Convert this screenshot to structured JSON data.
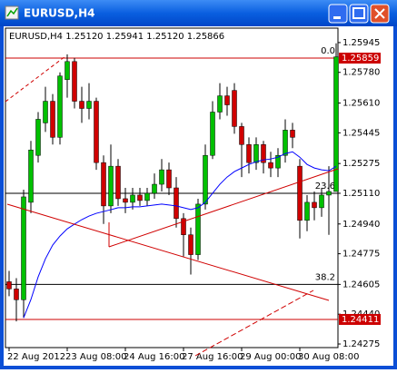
{
  "window_title": "EURUSD,H4",
  "chart_data": {
    "type": "candlestick",
    "header": "EURUSD,H4  1.25120 1.25941 1.25120 1.25866",
    "categories": [
      "22 Aug 2012",
      null,
      null,
      null,
      null,
      null,
      null,
      null,
      "23 Aug 08:00",
      null,
      null,
      null,
      null,
      null,
      null,
      null,
      "24 Aug 16:00",
      null,
      null,
      null,
      null,
      null,
      null,
      null,
      "27 Aug 16:00",
      null,
      null,
      null,
      null,
      null,
      null,
      null,
      "29 Aug 00:00",
      null,
      null,
      null,
      null,
      null,
      null,
      null,
      "30 Aug 08:00",
      null,
      null,
      null,
      null,
      null
    ],
    "open": [
      1.2462,
      1.2458,
      1.2452,
      1.2506,
      1.2532,
      1.255,
      1.2562,
      1.2542,
      1.2574,
      1.2584,
      1.2562,
      1.2558,
      1.2562,
      1.2528,
      1.2504,
      1.2526,
      1.2508,
      1.2506,
      1.251,
      1.2507,
      1.2511,
      1.2516,
      1.2524,
      1.2514,
      1.2497,
      1.2488,
      1.2477,
      1.2505,
      1.2532,
      1.2556,
      1.2565,
      1.2568,
      1.2548,
      1.2538,
      1.2528,
      1.2538,
      1.2528,
      1.2525,
      1.2532,
      1.2546,
      1.2526,
      1.2496,
      1.2506,
      1.2503,
      1.251,
      1.2512
    ],
    "high": [
      1.2468,
      1.2464,
      1.2513,
      1.254,
      1.2556,
      1.257,
      1.2566,
      1.2578,
      1.2588,
      1.2586,
      1.257,
      1.2572,
      1.2564,
      1.2532,
      1.2538,
      1.253,
      1.2514,
      1.2514,
      1.2514,
      1.2514,
      1.2522,
      1.253,
      1.2528,
      1.252,
      1.25,
      1.2492,
      1.2508,
      1.2538,
      1.2562,
      1.2572,
      1.257,
      1.2572,
      1.255,
      1.2542,
      1.2542,
      1.254,
      1.2534,
      1.2536,
      1.2552,
      1.255,
      1.253,
      1.251,
      1.2512,
      1.2514,
      1.2526,
      1.25941
    ],
    "low": [
      1.2454,
      1.244,
      1.2442,
      1.25,
      1.2528,
      1.2545,
      1.2538,
      1.2538,
      1.2564,
      1.2558,
      1.255,
      1.2552,
      1.2524,
      1.2494,
      1.25,
      1.2504,
      1.25,
      1.2502,
      1.2504,
      1.2504,
      1.2508,
      1.2512,
      1.251,
      1.2492,
      1.2476,
      1.2466,
      1.2474,
      1.2502,
      1.253,
      1.2552,
      1.2554,
      1.2544,
      1.252,
      1.2522,
      1.2524,
      1.2522,
      1.252,
      1.252,
      1.2528,
      1.2536,
      1.2486,
      1.249,
      1.2496,
      1.2498,
      1.2488,
      1.2512
    ],
    "close": [
      1.2458,
      1.2452,
      1.2509,
      1.2535,
      1.2552,
      1.2562,
      1.2542,
      1.2576,
      1.2584,
      1.2562,
      1.2558,
      1.2562,
      1.2528,
      1.2504,
      1.2526,
      1.2508,
      1.2506,
      1.251,
      1.2507,
      1.2511,
      1.2516,
      1.2524,
      1.2514,
      1.2497,
      1.2488,
      1.2477,
      1.2505,
      1.2532,
      1.2556,
      1.2565,
      1.256,
      1.2548,
      1.2538,
      1.2528,
      1.2538,
      1.2528,
      1.2525,
      1.2532,
      1.2546,
      1.2542,
      1.2496,
      1.2506,
      1.2503,
      1.251,
      1.2512,
      1.25866
    ],
    "up_color": "#00c000",
    "down_color": "#d00000",
    "ma": {
      "color": "#0000ff",
      "values": [
        null,
        null,
        1.2442,
        1.24521,
        1.24647,
        1.24747,
        1.24823,
        1.24873,
        1.24913,
        1.24939,
        1.24964,
        1.24984,
        1.24999,
        1.25009,
        1.25019,
        1.2503,
        1.2503,
        1.25035,
        1.25035,
        1.2504,
        1.25045,
        1.2505,
        1.25045,
        1.2504,
        1.2503,
        1.2502,
        1.2503,
        1.2506,
        1.2511,
        1.2516,
        1.252,
        1.2523,
        1.2525,
        1.2527,
        1.25285,
        1.25295,
        1.253,
        1.2531,
        1.2533,
        1.2534,
        1.2531,
        1.2527,
        1.2525,
        1.2524,
        1.25235,
        1.2526
      ]
    },
    "levels": [
      {
        "value": 1.25859,
        "color": "#cc0000",
        "label": "1.25859",
        "fibo": "0.0"
      },
      {
        "value": 1.2511,
        "color": "#000000",
        "fibo": "23.6"
      },
      {
        "value": 1.24605,
        "color": "#000000",
        "fibo": "38.2"
      },
      {
        "value": 1.24411,
        "color": "#cc0000",
        "label": "1.24411"
      }
    ],
    "ylim": [
      1.24255,
      1.26015
    ],
    "yticks": [
      1.25945,
      {
        "value": 1.2578,
        "label": "1.25780"
      },
      {
        "value": 1.2561,
        "label": "1.25610"
      },
      1.25445,
      1.25275,
      {
        "value": 1.2511,
        "label": "1.25110"
      },
      {
        "value": 1.2494,
        "label": "1.24940"
      },
      1.24775,
      1.24605,
      {
        "value": 1.2444,
        "label": "1.24440"
      },
      1.24275
    ]
  }
}
